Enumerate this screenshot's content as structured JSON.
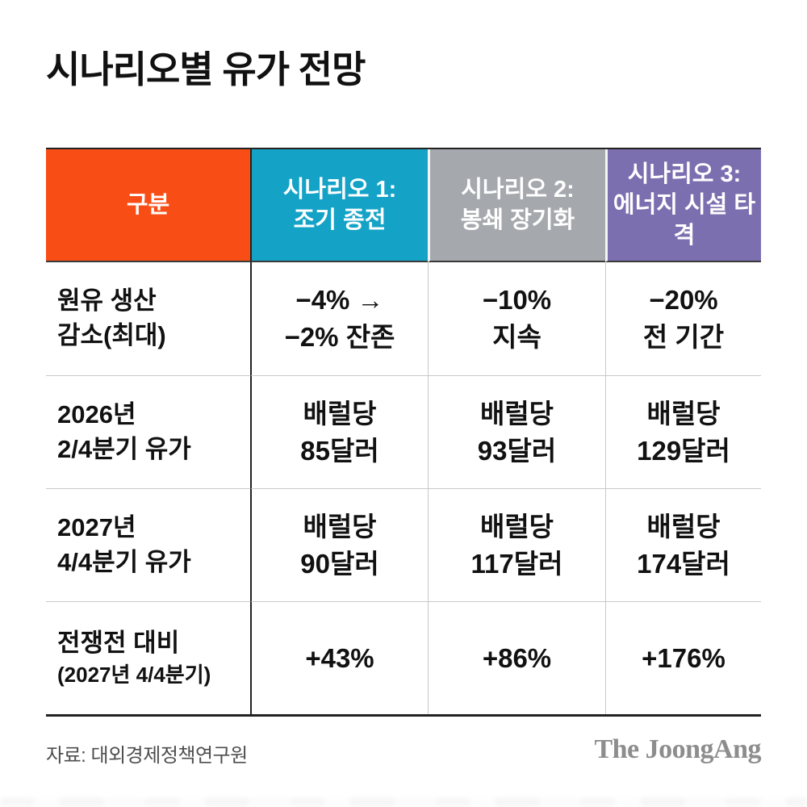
{
  "title": "시나리오별 유가 전망",
  "table": {
    "header": {
      "category": "구분",
      "scenarios": [
        {
          "lines": [
            "시나리오 1:",
            "조기 종전"
          ]
        },
        {
          "lines": [
            "시나리오 2:",
            "봉쇄 장기화"
          ]
        },
        {
          "lines": [
            "시나리오 3:",
            "에너지 시설 타격"
          ]
        }
      ]
    },
    "rows": [
      {
        "label_lines": [
          "원유 생산",
          "감소(최대)"
        ],
        "values": [
          [
            "−4% →",
            "−2% 잔존"
          ],
          [
            "−10%",
            "지속"
          ],
          [
            "−20%",
            "전 기간"
          ]
        ]
      },
      {
        "label_lines": [
          "2026년",
          "2/4분기 유가"
        ],
        "values": [
          [
            "배럴당",
            "85달러"
          ],
          [
            "배럴당",
            "93달러"
          ],
          [
            "배럴당",
            "129달러"
          ]
        ]
      },
      {
        "label_lines": [
          "2027년",
          "4/4분기 유가"
        ],
        "values": [
          [
            "배럴당",
            "90달러"
          ],
          [
            "배럴당",
            "117달러"
          ],
          [
            "배럴당",
            "174달러"
          ]
        ]
      },
      {
        "label_lines": [
          "전쟁전 대비",
          "(2027년 4/4분기)"
        ],
        "values": [
          [
            "+43%"
          ],
          [
            "+86%"
          ],
          [
            "+176%"
          ]
        ]
      }
    ]
  },
  "footer": {
    "source": "자료: 대외경제정책연구원",
    "logo": "The JoongAng"
  },
  "colors": {
    "category_header": "#F84E16",
    "scenario1_header": "#14A3C7",
    "scenario2_header": "#A5A8AD",
    "scenario3_header": "#7C6FB0",
    "header_text": "#ffffff",
    "border_dark": "#222222",
    "grid_line_light": "#c9c9c9",
    "source_text": "#4e4e4e",
    "logo_text": "#8d8d8d"
  },
  "chart_data": {
    "type": "table",
    "title": "시나리오별 유가 전망",
    "columns": [
      "구분",
      "시나리오 1: 조기 종전",
      "시나리오 2: 봉쇄 장기화",
      "시나리오 3: 에너지 시설 타격"
    ],
    "rows": [
      [
        "원유 생산 감소(최대)",
        "−4% → −2% 잔존",
        "−10% 지속",
        "−20% 전 기간"
      ],
      [
        "2026년 2/4분기 유가",
        "배럴당 85달러",
        "배럴당 93달러",
        "배럴당 129달러"
      ],
      [
        "2027년 4/4분기 유가",
        "배럴당 90달러",
        "배럴당 117달러",
        "배럴당 174달러"
      ],
      [
        "전쟁전 대비 (2027년 4/4분기)",
        "+43%",
        "+86%",
        "+176%"
      ]
    ],
    "oil_price_usd_per_barrel": {
      "2026_Q2": [
        85,
        93,
        129
      ],
      "2027_Q4": [
        90,
        117,
        174
      ]
    },
    "change_vs_prewar_pct_2027_Q4": [
      43,
      86,
      176
    ],
    "source": "자료: 대외경제정책연구원"
  }
}
